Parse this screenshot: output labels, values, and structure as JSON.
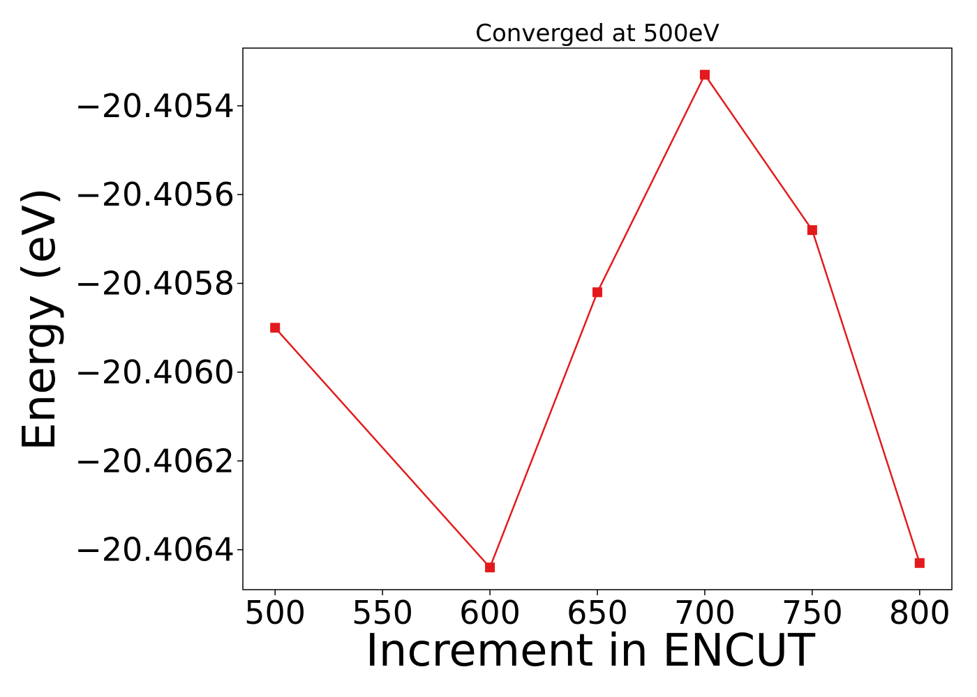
{
  "chart_data": {
    "type": "line",
    "title": "Converged at 500eV",
    "xlabel": "Increment in ENCUT",
    "ylabel": "Energy (eV)",
    "x": [
      500,
      600,
      650,
      700,
      750,
      800
    ],
    "series": [
      {
        "values": [
          -20.4059,
          -20.40644,
          -20.40582,
          -20.40533,
          -20.40568,
          -20.40643
        ],
        "color": "#e31a1c",
        "marker": "square"
      }
    ],
    "xlim": [
      485,
      815
    ],
    "ylim": [
      -20.40649,
      -20.40527
    ],
    "xticks": [
      500,
      550,
      600,
      650,
      700,
      750,
      800
    ],
    "xtick_labels": [
      "500",
      "550",
      "600",
      "650",
      "700",
      "750",
      "800"
    ],
    "yticks": [
      -20.4054,
      -20.4056,
      -20.4058,
      -20.406,
      -20.4062,
      -20.4064
    ],
    "ytick_labels": [
      "−20.4054",
      "−20.4056",
      "−20.4058",
      "−20.4060",
      "−20.4062",
      "−20.4064"
    ],
    "grid": false,
    "legend": "none"
  }
}
